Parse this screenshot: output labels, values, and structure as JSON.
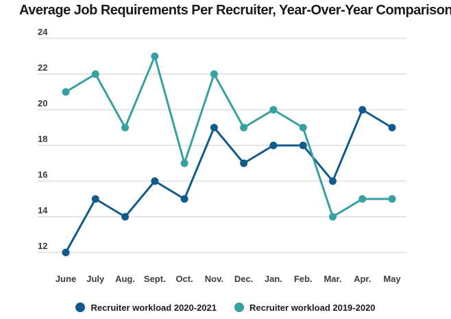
{
  "chart_data": {
    "type": "line",
    "title": "Average Job Requirements Per Recruiter, Year-Over-Year Comparison",
    "categories": [
      "June",
      "July",
      "Aug.",
      "Sept.",
      "Oct.",
      "Nov.",
      "Dec.",
      "Jan.",
      "Feb.",
      "Mar.",
      "Apr.",
      "May"
    ],
    "series": [
      {
        "name": "Recruiter workload 2020-2021",
        "color": "#115a8c",
        "values": [
          12,
          15,
          14,
          16,
          15,
          19,
          17,
          18,
          18,
          16,
          20,
          19
        ]
      },
      {
        "name": "Recruiter workload 2019-2020",
        "color": "#37a0a0",
        "values": [
          21,
          22,
          19,
          23,
          17,
          22,
          19,
          20,
          19,
          14,
          15,
          15
        ]
      }
    ],
    "yticks": [
      12,
      14,
      16,
      18,
      20,
      22,
      24
    ],
    "ylim": [
      12,
      24
    ],
    "xlabel": "",
    "ylabel": "",
    "grid": "horizontal-only",
    "legend_position": "bottom-center",
    "styles": {
      "grid_color": "#cccccc",
      "tick_label_color": "#3c3c3c",
      "background": "#ffffff",
      "line_width": 3,
      "marker_radius": 5.5
    }
  }
}
